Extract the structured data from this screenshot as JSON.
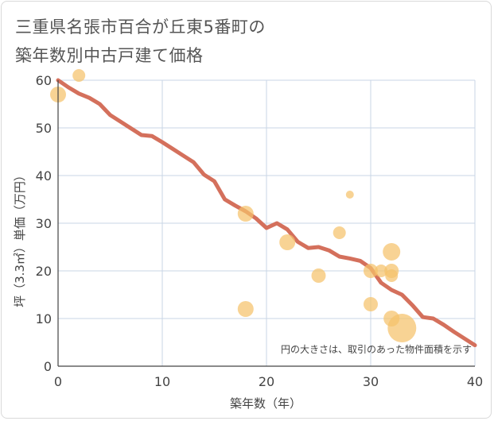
{
  "chart_data": {
    "type": "scatter",
    "title_lines": [
      "三重県名張市百合が丘東5番町の",
      "築年数別中古戸建て価格"
    ],
    "xlabel": "築年数（年）",
    "ylabel": "坪（3.3㎡）単価（万円）",
    "xlim": [
      0,
      40
    ],
    "ylim": [
      0,
      60
    ],
    "x_ticks": [
      0,
      10,
      20,
      30,
      40
    ],
    "y_ticks": [
      0,
      10,
      20,
      30,
      40,
      50,
      60
    ],
    "grid": true,
    "note": "円の大きさは、取引のあった物件面積を示す",
    "colors": {
      "trend": "#d4705c",
      "points": "#f5c26b",
      "grid": "#c9d6e6",
      "axis": "#444444"
    },
    "series": [
      {
        "name": "trend",
        "kind": "line",
        "points": [
          [
            0,
            60
          ],
          [
            1,
            58.5
          ],
          [
            2,
            57.2
          ],
          [
            3,
            56.3
          ],
          [
            4,
            55
          ],
          [
            5,
            52.7
          ],
          [
            6,
            51.3
          ],
          [
            7,
            49.9
          ],
          [
            8,
            48.5
          ],
          [
            9,
            48.3
          ],
          [
            10,
            47
          ],
          [
            11,
            45.6
          ],
          [
            12,
            44.2
          ],
          [
            13,
            42.8
          ],
          [
            14,
            40.2
          ],
          [
            15,
            38.8
          ],
          [
            16,
            35
          ],
          [
            17,
            33.7
          ],
          [
            18,
            32.5
          ],
          [
            19,
            31
          ],
          [
            20,
            29
          ],
          [
            21,
            30
          ],
          [
            22,
            28.7
          ],
          [
            23,
            26.1
          ],
          [
            24,
            24.8
          ],
          [
            25,
            25
          ],
          [
            26,
            24.3
          ],
          [
            27,
            23
          ],
          [
            28,
            22.6
          ],
          [
            29,
            22.1
          ],
          [
            30,
            20.6
          ],
          [
            31,
            17.5
          ],
          [
            32,
            16
          ],
          [
            33,
            15
          ],
          [
            34,
            12.8
          ],
          [
            35,
            10.3
          ],
          [
            36,
            10
          ],
          [
            37,
            8.7
          ],
          [
            38,
            7.2
          ],
          [
            39,
            5.8
          ],
          [
            40,
            4.4
          ]
        ]
      },
      {
        "name": "transactions",
        "kind": "bubble",
        "points": [
          {
            "x": 0,
            "y": 57,
            "size": 10
          },
          {
            "x": 2,
            "y": 61,
            "size": 8
          },
          {
            "x": 18,
            "y": 32,
            "size": 10
          },
          {
            "x": 18,
            "y": 12,
            "size": 10
          },
          {
            "x": 22,
            "y": 26,
            "size": 10
          },
          {
            "x": 25,
            "y": 19,
            "size": 9
          },
          {
            "x": 27,
            "y": 28,
            "size": 8
          },
          {
            "x": 28,
            "y": 36,
            "size": 5
          },
          {
            "x": 30,
            "y": 20,
            "size": 9
          },
          {
            "x": 30,
            "y": 13,
            "size": 9
          },
          {
            "x": 31,
            "y": 20,
            "size": 8
          },
          {
            "x": 32,
            "y": 24,
            "size": 11
          },
          {
            "x": 32,
            "y": 20,
            "size": 9
          },
          {
            "x": 32,
            "y": 19,
            "size": 8
          },
          {
            "x": 32,
            "y": 10,
            "size": 10
          },
          {
            "x": 33,
            "y": 8,
            "size": 18
          }
        ]
      }
    ]
  }
}
